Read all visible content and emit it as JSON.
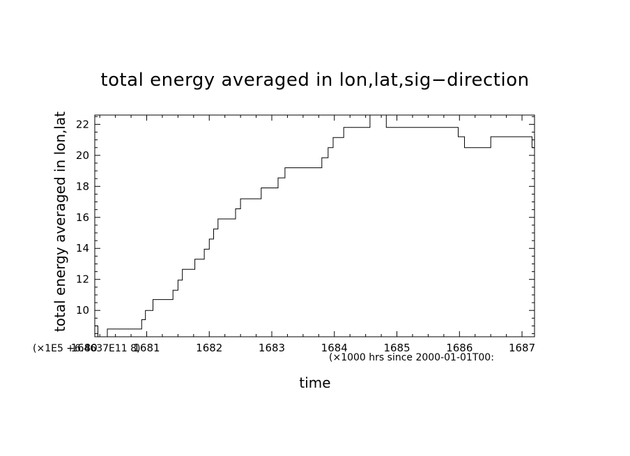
{
  "chart_data": {
    "type": "line",
    "step": true,
    "title": "total energy averaged in lon,lat,sig−direction",
    "xlabel": "time",
    "ylabel": "total energy averaged in lon,lat",
    "xlim": [
      1680.17,
      1687.2
    ],
    "ylim": [
      8.3,
      22.6
    ],
    "x_ticks": [
      1680,
      1681,
      1682,
      1683,
      1684,
      1685,
      1686,
      1687
    ],
    "x_tick_labels": [
      "1680",
      "1681",
      "1682",
      "1683",
      "1684",
      "1685",
      "1686",
      "1687"
    ],
    "y_ticks": [
      10,
      12,
      14,
      16,
      18,
      20,
      22
    ],
    "y_tick_labels": [
      "10",
      "12",
      "14",
      "16",
      "18",
      "20",
      "22"
    ],
    "x_multiplier_note": "(×1000 hrs  since 2000-01-01T00:",
    "y_multiplier_note": "(×1E5 +6.4637E11 8)",
    "grid": false,
    "series": [
      {
        "color": "#000000",
        "x": [
          1680.17,
          1680.22,
          1680.37,
          1680.92,
          1680.98,
          1681.1,
          1681.3,
          1681.42,
          1681.5,
          1681.57,
          1681.77,
          1681.92,
          1682.0,
          1682.07,
          1682.14,
          1682.42,
          1682.5,
          1682.58,
          1682.83,
          1682.98,
          1683.1,
          1683.21,
          1683.67,
          1683.8,
          1683.9,
          1683.98,
          1684.15,
          1684.57,
          1684.67,
          1684.83,
          1685.85,
          1685.98,
          1686.08,
          1686.23,
          1686.5,
          1686.8,
          1687.05,
          1687.16,
          1687.2
        ],
        "y": [
          9.0,
          8.3,
          8.8,
          9.4,
          10.0,
          10.7,
          10.7,
          11.3,
          11.95,
          12.65,
          13.3,
          13.95,
          14.6,
          15.25,
          15.9,
          16.55,
          17.2,
          17.2,
          17.9,
          17.9,
          18.55,
          19.2,
          19.2,
          19.85,
          20.5,
          21.15,
          21.8,
          22.6,
          22.6,
          21.8,
          21.8,
          21.2,
          20.5,
          20.5,
          21.2,
          21.2,
          21.2,
          20.5,
          20.5
        ]
      }
    ]
  }
}
